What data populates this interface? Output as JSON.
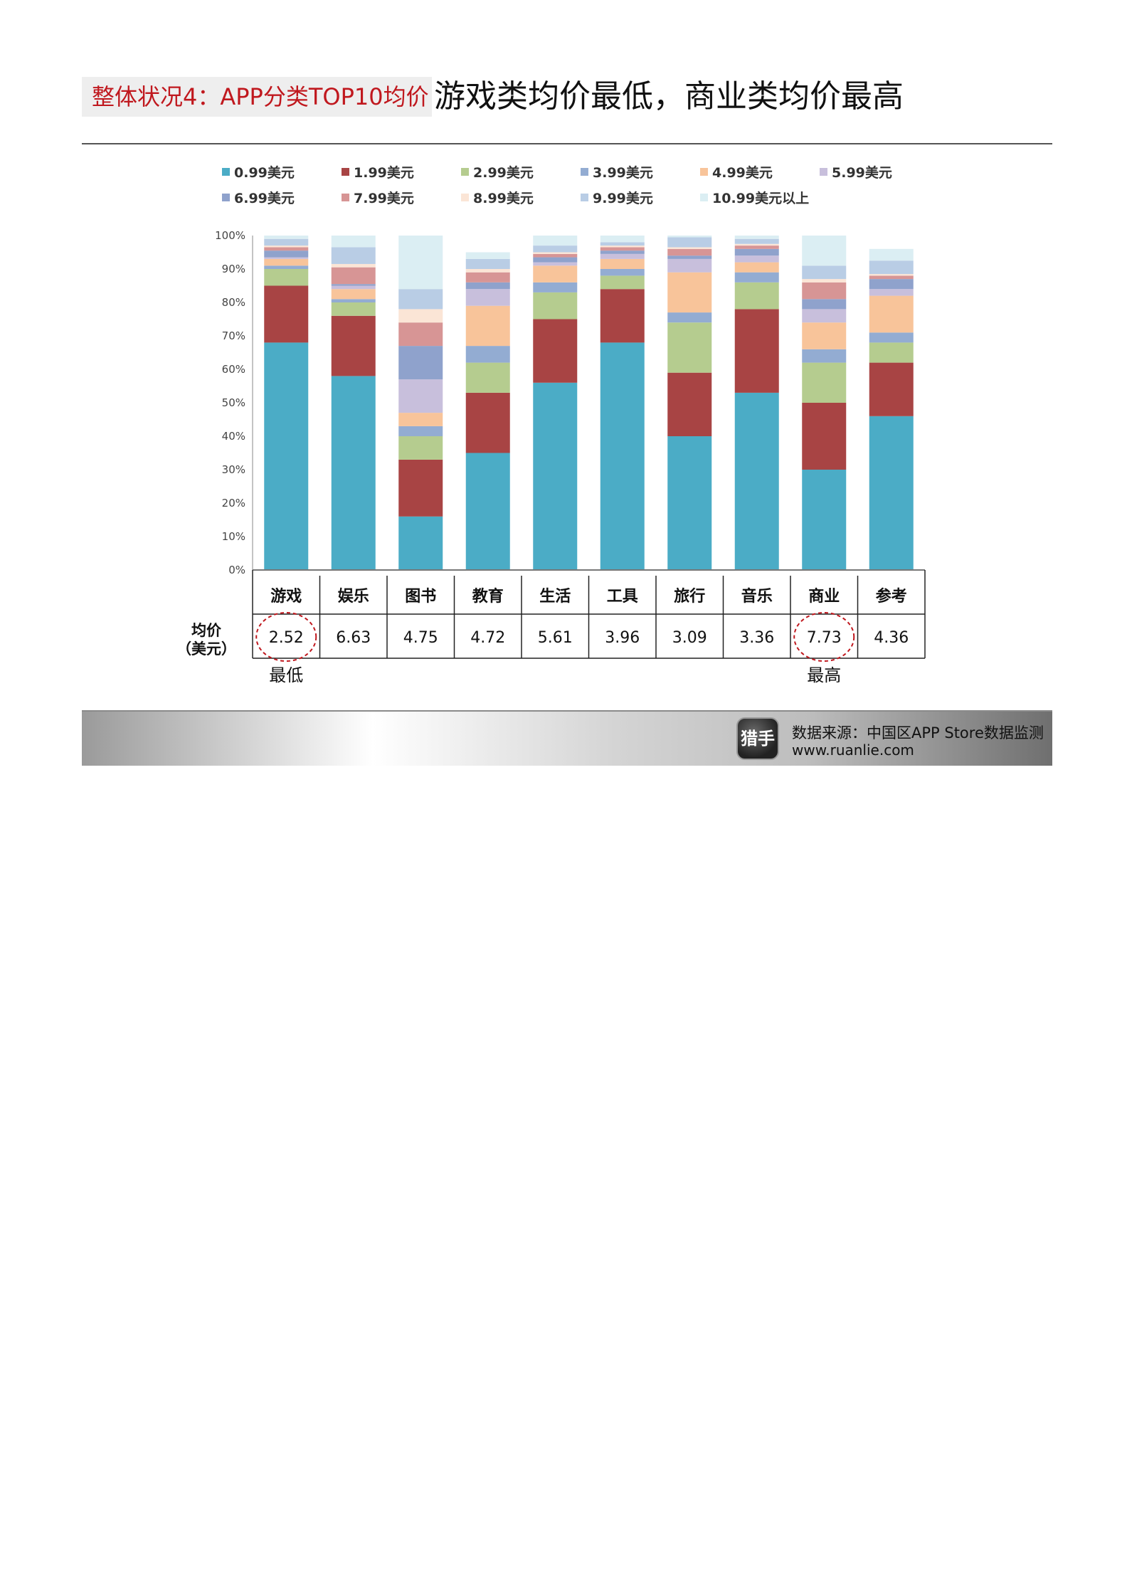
{
  "title": {
    "tag": "整体状况4：APP分类TOP10均价",
    "main": "游戏类均价最低，商业类均价最高"
  },
  "chart_data": {
    "type": "bar",
    "stacked": true,
    "categories": [
      "游戏",
      "娱乐",
      "图书",
      "教育",
      "生活",
      "工具",
      "旅行",
      "音乐",
      "商业",
      "参考"
    ],
    "yticks": [
      "0%",
      "10%",
      "20%",
      "30%",
      "40%",
      "50%",
      "60%",
      "70%",
      "80%",
      "90%",
      "100%"
    ],
    "ylim": [
      0,
      100
    ],
    "legend_position": "top",
    "series": [
      {
        "name": "0.99美元",
        "color": "#4bacc6",
        "values": [
          68,
          58,
          16,
          35,
          56,
          68,
          40,
          53,
          30,
          46
        ]
      },
      {
        "name": "1.99美元",
        "color": "#a84444",
        "values": [
          17,
          18,
          17,
          18,
          19,
          16,
          19,
          25,
          20,
          16
        ]
      },
      {
        "name": "2.99美元",
        "color": "#b5cc8f",
        "values": [
          5,
          4,
          7,
          9,
          8,
          4,
          15,
          8,
          12,
          6
        ]
      },
      {
        "name": "3.99美元",
        "color": "#93acd2",
        "values": [
          1,
          1,
          3,
          5,
          3,
          2,
          3,
          3,
          4,
          3
        ]
      },
      {
        "name": "4.99美元",
        "color": "#f8c49a",
        "values": [
          2,
          3,
          4,
          12,
          5,
          3,
          12,
          3,
          8,
          11
        ]
      },
      {
        "name": "5.99美元",
        "color": "#c8bfdc",
        "values": [
          0.5,
          1,
          10,
          5,
          1,
          1.5,
          4,
          2,
          4,
          2
        ]
      },
      {
        "name": "6.99美元",
        "color": "#8fa2cc",
        "values": [
          2,
          0.5,
          10,
          2,
          1.5,
          1,
          1,
          2,
          3,
          3
        ]
      },
      {
        "name": "7.99美元",
        "color": "#d79595",
        "values": [
          1,
          5,
          7,
          3,
          1,
          1,
          2,
          1,
          5,
          1
        ]
      },
      {
        "name": "8.99美元",
        "color": "#fbe5d6",
        "values": [
          0.5,
          1,
          4,
          1,
          0.5,
          0.5,
          0.5,
          0.5,
          1,
          0.5
        ]
      },
      {
        "name": "9.99美元",
        "color": "#b9cde5",
        "values": [
          2,
          5,
          6,
          3,
          2,
          1,
          3,
          1.5,
          4,
          4
        ]
      },
      {
        "name": "10.99美元以上",
        "color": "#dbeef3",
        "values": [
          1,
          3.5,
          16,
          2,
          3,
          2,
          0.5,
          1,
          9,
          3.5
        ]
      }
    ]
  },
  "price_table": {
    "row_label_1": "均价",
    "row_label_2": "（美元）",
    "values": [
      "2.52",
      "6.63",
      "4.75",
      "4.72",
      "5.61",
      "3.96",
      "3.09",
      "3.36",
      "7.73",
      "4.36"
    ],
    "lowest_index": 0,
    "highest_index": 8,
    "lowest_label": "最低",
    "highest_label": "最高"
  },
  "footer": {
    "logo_text": "猎手",
    "source": "数据来源：中国区APP Store数据监测",
    "url": "www.ruanlie.com"
  }
}
